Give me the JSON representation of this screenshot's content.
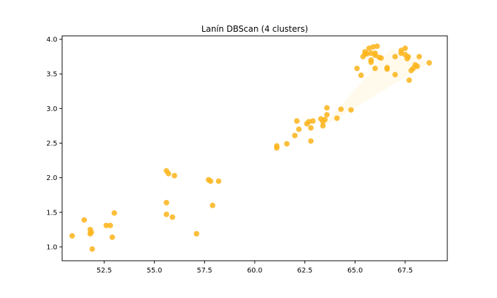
{
  "chart_data": {
    "type": "scatter",
    "title": "Lanín DBScan (4 clusters)",
    "xlabel": "",
    "ylabel": "",
    "xlim": [
      50.4,
      69.6
    ],
    "ylim": [
      0.8,
      4.05
    ],
    "xticks": [
      52.5,
      55.0,
      57.5,
      60.0,
      62.5,
      65.0,
      67.5
    ],
    "xtick_labels": [
      "52.5",
      "55.0",
      "57.5",
      "60.0",
      "62.5",
      "65.0",
      "67.5"
    ],
    "yticks": [
      1.0,
      1.5,
      2.0,
      2.5,
      3.0,
      3.5,
      4.0
    ],
    "ytick_labels": [
      "1.0",
      "1.5",
      "2.0",
      "2.5",
      "3.0",
      "3.5",
      "4.0"
    ],
    "grid": false,
    "point_color": "#FBB41A",
    "highlight_region_color": "#FFF7E0",
    "highlight_region": [
      [
        63.3,
        2.72
      ],
      [
        66.8,
        3.86
      ],
      [
        68.7,
        3.66
      ],
      [
        64.8,
        2.98
      ]
    ],
    "series": [
      {
        "points": [
          [
            50.9,
            1.16
          ],
          [
            51.5,
            1.39
          ],
          [
            51.8,
            1.25
          ],
          [
            51.8,
            1.19
          ],
          [
            51.9,
            0.97
          ],
          [
            51.85,
            1.21
          ],
          [
            52.6,
            1.31
          ],
          [
            52.8,
            1.31
          ],
          [
            52.9,
            1.14
          ],
          [
            53.0,
            1.49
          ],
          [
            55.6,
            2.1
          ],
          [
            55.7,
            2.06
          ],
          [
            56.0,
            2.03
          ],
          [
            55.6,
            1.64
          ],
          [
            55.6,
            1.47
          ],
          [
            55.9,
            1.43
          ],
          [
            57.1,
            1.19
          ],
          [
            57.7,
            1.97
          ],
          [
            57.8,
            1.95
          ],
          [
            58.2,
            1.95
          ],
          [
            57.9,
            1.6
          ],
          [
            61.1,
            2.46
          ],
          [
            61.1,
            2.43
          ],
          [
            61.6,
            2.49
          ],
          [
            62.0,
            2.61
          ],
          [
            62.1,
            2.82
          ],
          [
            62.2,
            2.7
          ],
          [
            62.6,
            2.78
          ],
          [
            62.7,
            2.81
          ],
          [
            62.8,
            2.72
          ],
          [
            62.8,
            2.53
          ],
          [
            62.9,
            2.82
          ],
          [
            63.3,
            2.85
          ],
          [
            63.4,
            2.81
          ],
          [
            63.4,
            2.75
          ],
          [
            63.5,
            2.84
          ],
          [
            63.6,
            2.91
          ],
          [
            63.6,
            3.01
          ],
          [
            64.1,
            2.86
          ],
          [
            64.3,
            2.99
          ],
          [
            64.8,
            2.98
          ],
          [
            65.1,
            3.58
          ],
          [
            65.3,
            3.48
          ],
          [
            65.4,
            3.75
          ],
          [
            65.5,
            3.79
          ],
          [
            65.5,
            3.82
          ],
          [
            65.6,
            3.79
          ],
          [
            65.7,
            3.87
          ],
          [
            65.8,
            3.8
          ],
          [
            65.9,
            3.89
          ],
          [
            65.8,
            3.7
          ],
          [
            65.8,
            3.67
          ],
          [
            66.0,
            3.8
          ],
          [
            66.0,
            3.77
          ],
          [
            66.0,
            3.58
          ],
          [
            66.1,
            3.9
          ],
          [
            66.2,
            3.74
          ],
          [
            66.3,
            3.73
          ],
          [
            66.6,
            3.59
          ],
          [
            66.6,
            3.57
          ],
          [
            67.0,
            3.75
          ],
          [
            67.0,
            3.49
          ],
          [
            67.3,
            3.84
          ],
          [
            67.3,
            3.8
          ],
          [
            67.5,
            3.78
          ],
          [
            67.5,
            3.87
          ],
          [
            67.6,
            3.72
          ],
          [
            67.65,
            3.75
          ],
          [
            67.7,
            3.41
          ],
          [
            67.8,
            3.55
          ],
          [
            67.9,
            3.58
          ],
          [
            68.0,
            3.63
          ],
          [
            68.1,
            3.61
          ],
          [
            68.2,
            3.75
          ],
          [
            68.7,
            3.66
          ]
        ]
      }
    ]
  }
}
